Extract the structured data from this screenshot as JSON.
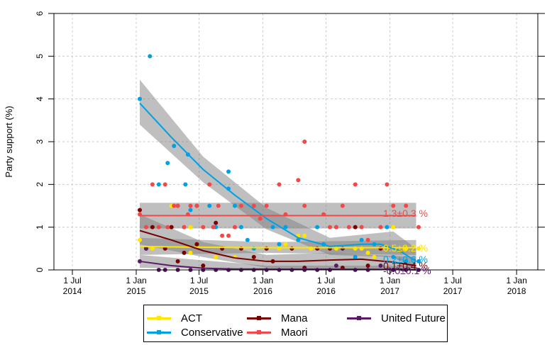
{
  "chart_data": {
    "type": "scatter",
    "title": "",
    "xlabel": "",
    "ylabel": "Party support (%)",
    "ylim": [
      0,
      6
    ],
    "xlim": [
      "2014-05-15",
      "2018-02-15"
    ],
    "yticks": [
      0,
      1,
      2,
      3,
      4,
      5,
      6
    ],
    "xticks": [
      {
        "date": "2014-07-01",
        "line1": "1 Jul",
        "line2": "2014"
      },
      {
        "date": "2015-01-01",
        "line1": "1 Jan",
        "line2": "2015"
      },
      {
        "date": "2015-07-01",
        "line1": "1 Jul",
        "line2": "2015"
      },
      {
        "date": "2016-01-01",
        "line1": "1 Jan",
        "line2": "2016"
      },
      {
        "date": "2016-07-01",
        "line1": "1 Jul",
        "line2": "2016"
      },
      {
        "date": "2017-01-01",
        "line1": "1 Jan",
        "line2": "2017"
      },
      {
        "date": "2017-07-01",
        "line1": "1 Jul",
        "line2": "2017"
      },
      {
        "date": "2018-01-01",
        "line1": "1 Jan",
        "line2": "2018"
      }
    ],
    "grid": true,
    "legend_position": "bottom",
    "series": [
      {
        "name": "ACT",
        "color": "#FFE500",
        "end_label": "0.5±0.2 %",
        "trend": [
          [
            0,
            0.55
          ],
          [
            0.5,
            0.53
          ],
          [
            1.0,
            0.52
          ],
          [
            1.5,
            0.52
          ],
          [
            2.0,
            0.52
          ],
          [
            2.18,
            0.52
          ]
        ],
        "band": [
          [
            0,
            0.35,
            0.75
          ],
          [
            1.0,
            0.4,
            0.65
          ],
          [
            2.18,
            0.35,
            0.7
          ]
        ],
        "points": [
          [
            0.0,
            0.7
          ],
          [
            0.1,
            0.5
          ],
          [
            0.25,
            1.5
          ],
          [
            0.4,
            1.0
          ],
          [
            0.4,
            0.4
          ],
          [
            0.5,
            1.0
          ],
          [
            0.6,
            0.3
          ],
          [
            0.75,
            0.3
          ],
          [
            0.8,
            0.5
          ],
          [
            0.9,
            0.5
          ],
          [
            1.0,
            0.5
          ],
          [
            1.1,
            0.5
          ],
          [
            1.15,
            0.6
          ],
          [
            1.25,
            0.8
          ],
          [
            1.3,
            0.8
          ],
          [
            1.35,
            0.5
          ],
          [
            1.5,
            0.5
          ],
          [
            1.55,
            0.5
          ],
          [
            1.7,
            0.5
          ],
          [
            1.75,
            0.5
          ],
          [
            1.8,
            0.4
          ],
          [
            1.85,
            0.3
          ],
          [
            1.9,
            0.5
          ],
          [
            2.0,
            1.0
          ],
          [
            2.1,
            0.5
          ],
          [
            2.2,
            0.5
          ]
        ]
      },
      {
        "name": "Conservative",
        "color": "#00A0E4",
        "end_label": "0.2±0.6 %",
        "trend": [
          [
            0,
            3.9
          ],
          [
            0.25,
            3.1
          ],
          [
            0.5,
            2.35
          ],
          [
            0.75,
            1.75
          ],
          [
            1.0,
            1.2
          ],
          [
            1.25,
            0.75
          ],
          [
            1.5,
            0.55
          ],
          [
            1.75,
            0.6
          ],
          [
            1.9,
            0.6
          ],
          [
            2.05,
            0.45
          ],
          [
            2.18,
            0.2
          ]
        ],
        "band": [
          [
            0,
            3.4,
            4.45
          ],
          [
            0.5,
            2.05,
            2.65
          ],
          [
            1.0,
            0.95,
            1.45
          ],
          [
            1.5,
            0.35,
            0.75
          ],
          [
            2.0,
            0.3,
            0.9
          ],
          [
            2.18,
            0.0,
            0.5
          ]
        ],
        "points": [
          [
            0.0,
            4.0
          ],
          [
            0.08,
            5.0
          ],
          [
            0.15,
            2.0
          ],
          [
            0.22,
            2.5
          ],
          [
            0.27,
            2.9
          ],
          [
            0.3,
            1.5
          ],
          [
            0.36,
            2.0
          ],
          [
            0.38,
            2.7
          ],
          [
            0.4,
            1.4
          ],
          [
            0.45,
            1.5
          ],
          [
            0.55,
            1.5
          ],
          [
            0.6,
            1.0
          ],
          [
            0.7,
            2.3
          ],
          [
            0.7,
            1.9
          ],
          [
            0.75,
            1.5
          ],
          [
            0.8,
            1.0
          ],
          [
            0.85,
            0.7
          ],
          [
            0.9,
            0.5
          ],
          [
            1.0,
            0.5
          ],
          [
            1.05,
            1.0
          ],
          [
            1.1,
            0.6
          ],
          [
            1.15,
            1.0
          ],
          [
            1.25,
            0.7
          ],
          [
            1.4,
            1.0
          ],
          [
            1.45,
            0.6
          ],
          [
            1.55,
            1.0
          ],
          [
            1.7,
            0.3
          ],
          [
            1.75,
            0.7
          ],
          [
            1.85,
            0.6
          ],
          [
            1.95,
            1.0
          ],
          [
            2.0,
            0.3
          ],
          [
            2.1,
            0.2
          ],
          [
            2.2,
            0.2
          ]
        ]
      },
      {
        "name": "Mana",
        "color": "#770000",
        "end_label": "0.1±0.4 %",
        "trend": [
          [
            0,
            0.92
          ],
          [
            0.25,
            0.7
          ],
          [
            0.5,
            0.45
          ],
          [
            0.75,
            0.28
          ],
          [
            1.0,
            0.2
          ],
          [
            1.25,
            0.2
          ],
          [
            1.5,
            0.23
          ],
          [
            1.75,
            0.25
          ],
          [
            2.0,
            0.18
          ],
          [
            2.18,
            0.1
          ]
        ],
        "band": [
          [
            0,
            0.6,
            1.3
          ],
          [
            0.5,
            0.3,
            0.65
          ],
          [
            1.0,
            0.05,
            0.35
          ],
          [
            1.5,
            0.05,
            0.4
          ],
          [
            2.18,
            0.0,
            0.3
          ]
        ],
        "points": [
          [
            0.0,
            1.4
          ],
          [
            0.05,
            0.5
          ],
          [
            0.1,
            1.0
          ],
          [
            0.2,
            0.5
          ],
          [
            0.25,
            1.0
          ],
          [
            0.3,
            0.2
          ],
          [
            0.35,
            0.4
          ],
          [
            0.45,
            0.6
          ],
          [
            0.5,
            0.1
          ],
          [
            0.6,
            1.1
          ],
          [
            0.65,
            0.5
          ],
          [
            0.8,
            0.5
          ],
          [
            0.9,
            0.3
          ],
          [
            1.0,
            0.5
          ],
          [
            1.05,
            0.2
          ],
          [
            1.2,
            0.5
          ],
          [
            1.3,
            0.05
          ],
          [
            1.4,
            0.5
          ],
          [
            1.5,
            0.5
          ],
          [
            1.6,
            0.05
          ],
          [
            1.7,
            1.0
          ],
          [
            1.8,
            0.1
          ],
          [
            1.9,
            0.5
          ],
          [
            2.0,
            0.0
          ]
        ]
      },
      {
        "name": "Maori",
        "color": "#EF4A49",
        "end_label": "1.3±0.3 %",
        "trend": [
          [
            0,
            1.27
          ],
          [
            2.18,
            1.27
          ]
        ],
        "band": [
          [
            0,
            0.97,
            1.57
          ],
          [
            2.18,
            0.97,
            1.57
          ]
        ],
        "points": [
          [
            0.0,
            1.3
          ],
          [
            0.05,
            1.0
          ],
          [
            0.1,
            2.0
          ],
          [
            0.15,
            1.0
          ],
          [
            0.2,
            2.0
          ],
          [
            0.22,
            1.0
          ],
          [
            0.27,
            1.5
          ],
          [
            0.3,
            1.5
          ],
          [
            0.35,
            1.0
          ],
          [
            0.38,
            1.3
          ],
          [
            0.4,
            1.5
          ],
          [
            0.45,
            1.5
          ],
          [
            0.5,
            1.0
          ],
          [
            0.55,
            2.0
          ],
          [
            0.58,
            1.0
          ],
          [
            0.62,
            1.5
          ],
          [
            0.65,
            0.8
          ],
          [
            0.7,
            0.8
          ],
          [
            0.75,
            1.0
          ],
          [
            0.8,
            1.5
          ],
          [
            0.9,
            1.5
          ],
          [
            0.95,
            1.2
          ],
          [
            1.0,
            1.5
          ],
          [
            1.1,
            2.0
          ],
          [
            1.15,
            1.3
          ],
          [
            1.25,
            2.1
          ],
          [
            1.3,
            1.5
          ],
          [
            1.3,
            3.0
          ],
          [
            1.45,
            1.3
          ],
          [
            1.5,
            1.0
          ],
          [
            1.55,
            1.0
          ],
          [
            1.6,
            1.5
          ],
          [
            1.65,
            1.0
          ],
          [
            1.7,
            2.0
          ],
          [
            1.75,
            1.0
          ],
          [
            1.8,
            0.7
          ],
          [
            1.9,
            1.0
          ],
          [
            1.95,
            2.0
          ],
          [
            2.0,
            1.5
          ],
          [
            2.1,
            1.5
          ],
          [
            2.2,
            1.0
          ]
        ]
      },
      {
        "name": "United Future",
        "color": "#5B1A66",
        "end_label": "-0.0±0.1 %",
        "trend": [
          [
            0,
            0.2
          ],
          [
            0.25,
            0.1
          ],
          [
            0.5,
            0.04
          ],
          [
            0.75,
            0.02
          ],
          [
            1.0,
            0.02
          ],
          [
            1.5,
            0.02
          ],
          [
            2.0,
            0.01
          ],
          [
            2.18,
            0.0
          ]
        ],
        "band": [
          [
            0,
            0.05,
            0.35
          ],
          [
            1.0,
            -0.05,
            0.1
          ],
          [
            2.18,
            -0.1,
            0.1
          ]
        ],
        "points": [
          [
            0.0,
            0.2
          ],
          [
            0.05,
            0.5
          ],
          [
            0.15,
            0.0
          ],
          [
            0.2,
            0.0
          ],
          [
            0.3,
            0.0
          ],
          [
            0.4,
            0.0
          ],
          [
            0.5,
            0.0
          ],
          [
            0.6,
            0.0
          ],
          [
            0.7,
            0.0
          ],
          [
            0.8,
            0.0
          ],
          [
            0.9,
            0.0
          ],
          [
            1.0,
            0.0
          ],
          [
            1.1,
            0.0
          ],
          [
            1.2,
            0.0
          ],
          [
            1.3,
            0.0
          ],
          [
            1.4,
            0.0
          ],
          [
            1.5,
            0.0
          ],
          [
            1.55,
            0.1
          ],
          [
            1.6,
            0.5
          ],
          [
            1.7,
            0.0
          ],
          [
            1.8,
            0.0
          ],
          [
            1.9,
            0.1
          ],
          [
            2.0,
            0.0
          ],
          [
            2.1,
            0.0
          ],
          [
            2.2,
            0.0
          ]
        ]
      }
    ],
    "x_units": "years since 2014-10-01 (approx. first poll)"
  }
}
